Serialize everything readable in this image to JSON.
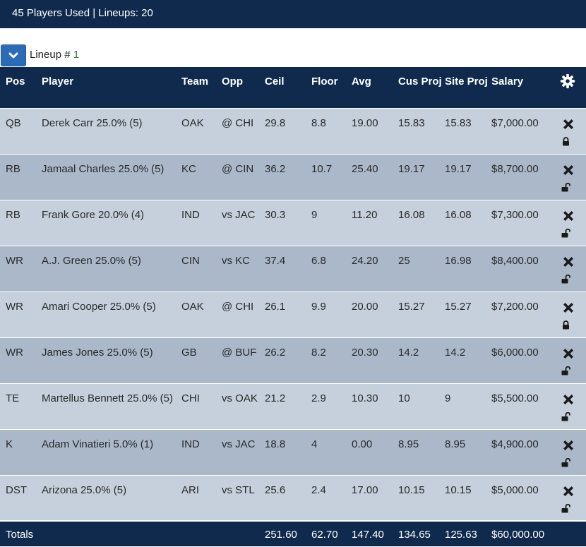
{
  "header": {
    "summary": "45 Players Used | Lineups: 20"
  },
  "lineup": {
    "label": "Lineup # ",
    "number": "1"
  },
  "columns": [
    "Pos",
    "Player",
    "Team",
    "Opp",
    "Ceil",
    "Floor",
    "Avg",
    "Cus Proj",
    "Site Proj",
    "Salary"
  ],
  "rows": [
    {
      "pos": "QB",
      "player": "Derek Carr 25.0% (5)",
      "team": "OAK",
      "opp": "@ CHI",
      "ceil": "29.8",
      "floor": "8.8",
      "avg": "19.00",
      "cus_proj": "15.83",
      "site_proj": "15.83",
      "salary": "$7,000.00",
      "locked": true
    },
    {
      "pos": "RB",
      "player": "Jamaal Charles 25.0% (5)",
      "team": "KC",
      "opp": "@ CIN",
      "ceil": "36.2",
      "floor": "10.7",
      "avg": "25.40",
      "cus_proj": "19.17",
      "site_proj": "19.17",
      "salary": "$8,700.00",
      "locked": false
    },
    {
      "pos": "RB",
      "player": "Frank Gore 20.0% (4)",
      "team": "IND",
      "opp": "vs JAC",
      "ceil": "30.3",
      "floor": "9",
      "avg": "11.20",
      "cus_proj": "16.08",
      "site_proj": "16.08",
      "salary": "$7,300.00",
      "locked": false
    },
    {
      "pos": "WR",
      "player": "A.J. Green 25.0% (5)",
      "team": "CIN",
      "opp": "vs KC",
      "ceil": "37.4",
      "floor": "6.8",
      "avg": "24.20",
      "cus_proj": "25",
      "site_proj": "16.98",
      "salary": "$8,400.00",
      "locked": false
    },
    {
      "pos": "WR",
      "player": "Amari Cooper 25.0% (5)",
      "team": "OAK",
      "opp": "@ CHI",
      "ceil": "26.1",
      "floor": "9.9",
      "avg": "20.00",
      "cus_proj": "15.27",
      "site_proj": "15.27",
      "salary": "$7,200.00",
      "locked": true
    },
    {
      "pos": "WR",
      "player": "James Jones 25.0% (5)",
      "team": "GB",
      "opp": "@ BUF",
      "ceil": "26.2",
      "floor": "8.2",
      "avg": "20.30",
      "cus_proj": "14.2",
      "site_proj": "14.2",
      "salary": "$6,000.00",
      "locked": false
    },
    {
      "pos": "TE",
      "player": "Martellus Bennett 25.0% (5)",
      "team": "CHI",
      "opp": "vs OAK",
      "ceil": "21.2",
      "floor": "2.9",
      "avg": "10.30",
      "cus_proj": "10",
      "site_proj": "9",
      "salary": "$5,500.00",
      "locked": false
    },
    {
      "pos": "K",
      "player": "Adam Vinatieri 5.0% (1)",
      "team": "IND",
      "opp": "vs JAC",
      "ceil": "18.8",
      "floor": "4",
      "avg": "0.00",
      "cus_proj": "8.95",
      "site_proj": "8.95",
      "salary": "$4,900.00",
      "locked": false
    },
    {
      "pos": "DST",
      "player": "Arizona 25.0% (5)",
      "team": "ARI",
      "opp": "vs STL",
      "ceil": "25.6",
      "floor": "2.4",
      "avg": "17.00",
      "cus_proj": "10.15",
      "site_proj": "10.15",
      "salary": "$5,000.00",
      "locked": false
    }
  ],
  "totals": {
    "label": "Totals",
    "ceil": "251.60",
    "floor": "62.70",
    "avg": "147.40",
    "cus_proj": "134.65",
    "site_proj": "125.63",
    "salary": "$60,000.00"
  },
  "icons": {
    "toggle": "chevron-down-icon",
    "settings": "gear-icon",
    "remove": "close-icon",
    "lock": "lock-icon",
    "unlock": "unlock-icon"
  },
  "colors": {
    "header_bg": "#0f2a4d",
    "row_light": "#c5d0dc",
    "row_dark": "#aab8c9",
    "button": "#2b6cb8",
    "lineup_number": "#2e7d32"
  }
}
